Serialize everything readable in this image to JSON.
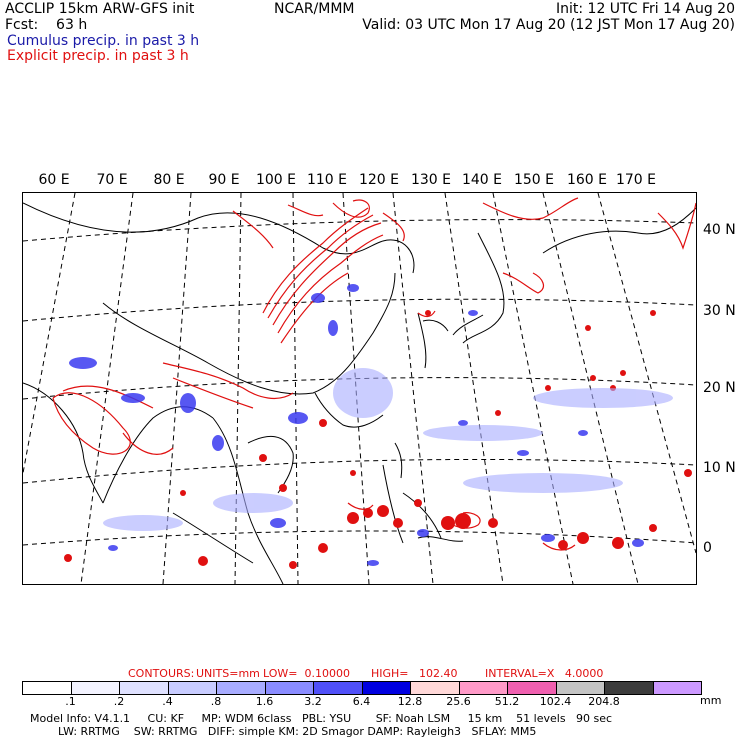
{
  "header": {
    "left_line1": "ACCLIP 15km ARW-GFS init",
    "left_line2": "Fcst:    63 h",
    "center_line1": "NCAR/MMM",
    "right_line1": "Init: 12 UTC Fri 14 Aug 20",
    "right_line2": "Valid: 03 UTC Mon 17 Aug 20 (12 JST Mon 17 Aug 20)",
    "legend_blue": "Cumulus precip. in past 3 h",
    "legend_red": "Explicit precip. in past 3 h"
  },
  "map": {
    "lon_labels": [
      "60 E",
      "70 E",
      "80 E",
      "90 E",
      "100 E",
      "110 E",
      "120 E",
      "130 E",
      "140 E",
      "150 E",
      "160 E",
      "170 E"
    ],
    "lat_labels": [
      "40 N",
      "30 N",
      "20 N",
      "10 N",
      "0"
    ],
    "colors": {
      "cumulus": "#2a2af0",
      "explicit": "#e01010",
      "land": "#000000"
    }
  },
  "contours": {
    "prefix": "CONTOURS:",
    "units": "UNITS=mm",
    "low": "LOW=  0.10000",
    "high": "HIGH=   102.40",
    "interval": "INTERVAL=X   4.0000"
  },
  "colorbar": {
    "labels": [
      ".1",
      ".2",
      ".4",
      ".8",
      "1.6",
      "3.2",
      "6.4",
      "12.8",
      "25.6",
      "51.2",
      "102.4",
      "204.8"
    ],
    "unit": "mm",
    "colors": [
      "#ffffff",
      "#f3f3ff",
      "#dfe1ff",
      "#c8ccff",
      "#a8acff",
      "#8a8cff",
      "#5050f8",
      "#0000e0",
      "#ffd8d8",
      "#ff9ac8",
      "#f060b0",
      "#c4c4c4",
      "#3c3c3c",
      "#cc99ff"
    ]
  },
  "footer": {
    "line1": "Model Info: V4.1.1     CU: KF     MP: WDM 6class   PBL: YSU       SF: Noah LSM     15 km    51 levels   90 sec",
    "line2": "        LW: RRTMG    SW: RRTMG   DIFF: simple KM: 2D Smagor DAMP: Rayleigh3   SFLAY: MM5"
  }
}
